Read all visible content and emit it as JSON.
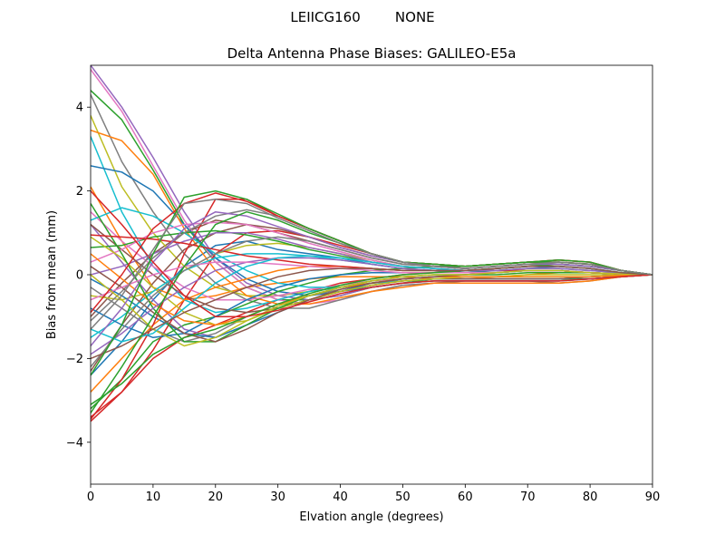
{
  "chart_data": {
    "type": "line",
    "suptitle": "LEIICG160        NONE",
    "title": "Delta Antenna Phase Biases: GALILEO-E5a",
    "xlabel": "Elvation angle (degrees)",
    "ylabel": "Bias from mean (mm)",
    "xlim": [
      0,
      90
    ],
    "ylim": [
      -5,
      5
    ],
    "xticks": [
      0,
      10,
      20,
      30,
      40,
      50,
      60,
      70,
      80,
      90
    ],
    "yticks": [
      -4,
      -2,
      0,
      2,
      4
    ],
    "grid": false,
    "legend": "none",
    "x": [
      0,
      5,
      10,
      15,
      20,
      25,
      30,
      35,
      40,
      45,
      50,
      55,
      60,
      65,
      70,
      75,
      80,
      85,
      90
    ],
    "series": [
      {
        "color": "#1f77b4",
        "values": [
          -2.4,
          -1.6,
          -0.6,
          0.2,
          0.7,
          0.8,
          0.6,
          0.5,
          0.4,
          0.25,
          0.15,
          0.1,
          0.05,
          0.1,
          0.15,
          0.2,
          0.15,
          0.05,
          0
        ]
      },
      {
        "color": "#ff7f0e",
        "values": [
          2.1,
          0.8,
          -0.3,
          -0.6,
          -0.5,
          -0.3,
          -0.2,
          -0.1,
          -0.05,
          -0.05,
          -0.05,
          -0.1,
          -0.1,
          -0.05,
          0,
          0.05,
          0.05,
          0.02,
          0
        ]
      },
      {
        "color": "#2ca02c",
        "values": [
          4.4,
          3.7,
          2.5,
          1.2,
          0.3,
          -0.3,
          -0.6,
          -0.6,
          -0.5,
          -0.3,
          -0.2,
          -0.1,
          -0.1,
          -0.1,
          -0.1,
          -0.1,
          -0.1,
          -0.05,
          0
        ]
      },
      {
        "color": "#d62728",
        "values": [
          -3.4,
          -2.8,
          -2.0,
          -1.5,
          -1.2,
          -0.9,
          -0.6,
          -0.4,
          -0.2,
          -0.1,
          0,
          0.05,
          0.1,
          0.15,
          0.2,
          0.25,
          0.2,
          0.1,
          0
        ]
      },
      {
        "color": "#9467bd",
        "values": [
          5.0,
          4.0,
          2.8,
          1.5,
          0.4,
          -0.2,
          -0.5,
          -0.6,
          -0.5,
          -0.3,
          -0.2,
          -0.15,
          -0.15,
          -0.15,
          -0.15,
          -0.15,
          -0.1,
          -0.05,
          0
        ]
      },
      {
        "color": "#8c564b",
        "values": [
          -1.0,
          -0.2,
          0.5,
          1.0,
          1.3,
          1.2,
          1.0,
          0.8,
          0.6,
          0.4,
          0.25,
          0.2,
          0.15,
          0.2,
          0.25,
          0.3,
          0.25,
          0.1,
          0
        ]
      },
      {
        "color": "#e377c2",
        "values": [
          4.9,
          3.9,
          2.6,
          1.3,
          0.3,
          -0.3,
          -0.6,
          -0.7,
          -0.6,
          -0.4,
          -0.25,
          -0.2,
          -0.15,
          -0.15,
          -0.15,
          -0.15,
          -0.1,
          -0.05,
          0
        ]
      },
      {
        "color": "#7f7f7f",
        "values": [
          4.3,
          2.7,
          1.5,
          0.5,
          -0.2,
          -0.6,
          -0.8,
          -0.8,
          -0.6,
          -0.4,
          -0.25,
          -0.2,
          -0.15,
          -0.15,
          -0.15,
          -0.2,
          -0.15,
          -0.05,
          0
        ]
      },
      {
        "color": "#bcbd22",
        "values": [
          3.8,
          2.1,
          1.0,
          0.2,
          -0.3,
          -0.5,
          -0.5,
          -0.4,
          -0.3,
          -0.2,
          -0.15,
          -0.1,
          -0.1,
          -0.1,
          -0.1,
          -0.1,
          -0.05,
          -0.02,
          0
        ]
      },
      {
        "color": "#17becf",
        "values": [
          3.3,
          1.5,
          0.2,
          -0.6,
          -0.9,
          -0.8,
          -0.6,
          -0.4,
          -0.3,
          -0.2,
          -0.1,
          -0.05,
          -0.05,
          -0.05,
          -0.05,
          -0.05,
          -0.05,
          -0.02,
          0
        ]
      },
      {
        "color": "#1f77b4",
        "values": [
          2.6,
          2.45,
          2.0,
          1.2,
          0.4,
          -0.1,
          -0.4,
          -0.5,
          -0.4,
          -0.3,
          -0.2,
          -0.15,
          -0.15,
          -0.15,
          -0.15,
          -0.15,
          -0.1,
          -0.05,
          0
        ]
      },
      {
        "color": "#ff7f0e",
        "values": [
          3.45,
          3.2,
          2.4,
          1.1,
          0.1,
          -0.5,
          -0.7,
          -0.7,
          -0.55,
          -0.4,
          -0.3,
          -0.2,
          -0.2,
          -0.2,
          -0.2,
          -0.2,
          -0.15,
          -0.05,
          0
        ]
      },
      {
        "color": "#2ca02c",
        "values": [
          -3.2,
          -2.5,
          -1.6,
          -1.2,
          -1.0,
          -0.7,
          -0.4,
          -0.2,
          0,
          0.1,
          0.15,
          0.2,
          0.2,
          0.25,
          0.3,
          0.3,
          0.25,
          0.1,
          0
        ]
      },
      {
        "color": "#d62728",
        "values": [
          -3.5,
          -2.8,
          -1.8,
          -0.6,
          0.5,
          1.0,
          1.05,
          0.9,
          0.7,
          0.5,
          0.3,
          0.25,
          0.2,
          0.25,
          0.3,
          0.3,
          0.25,
          0.1,
          0
        ]
      },
      {
        "color": "#9467bd",
        "values": [
          1.2,
          0.3,
          -0.6,
          -1.3,
          -1.5,
          -1.2,
          -0.8,
          -0.6,
          -0.4,
          -0.25,
          -0.15,
          -0.1,
          -0.1,
          -0.1,
          -0.1,
          -0.1,
          -0.05,
          -0.02,
          0
        ]
      },
      {
        "color": "#8c564b",
        "values": [
          -2.3,
          -1.2,
          -0.2,
          0.6,
          1.0,
          1.2,
          1.1,
          0.9,
          0.65,
          0.45,
          0.3,
          0.2,
          0.15,
          0.2,
          0.25,
          0.25,
          0.2,
          0.1,
          0
        ]
      },
      {
        "color": "#e377c2",
        "values": [
          1.5,
          0.8,
          0.2,
          -0.3,
          -0.6,
          -0.6,
          -0.5,
          -0.35,
          -0.25,
          -0.15,
          -0.1,
          -0.05,
          -0.05,
          -0.05,
          -0.05,
          -0.05,
          -0.05,
          -0.02,
          0
        ]
      },
      {
        "color": "#7f7f7f",
        "values": [
          -0.3,
          -0.8,
          -1.3,
          -1.6,
          -1.4,
          -1.0,
          -0.7,
          -0.5,
          -0.35,
          -0.2,
          -0.1,
          -0.05,
          -0.05,
          -0.05,
          -0.05,
          -0.05,
          -0.05,
          -0.02,
          0
        ]
      },
      {
        "color": "#bcbd22",
        "values": [
          -0.5,
          -0.6,
          -0.4,
          0.1,
          0.5,
          0.7,
          0.75,
          0.65,
          0.5,
          0.35,
          0.2,
          0.15,
          0.1,
          0.15,
          0.2,
          0.2,
          0.15,
          0.05,
          0
        ]
      },
      {
        "color": "#17becf",
        "values": [
          1.3,
          1.6,
          1.4,
          1.0,
          0.5,
          0.1,
          -0.2,
          -0.3,
          -0.3,
          -0.2,
          -0.15,
          -0.1,
          -0.1,
          -0.1,
          -0.1,
          -0.1,
          -0.05,
          -0.02,
          0
        ]
      },
      {
        "color": "#1f77b4",
        "values": [
          -0.1,
          -0.5,
          -1.0,
          -1.4,
          -1.5,
          -1.2,
          -0.9,
          -0.6,
          -0.4,
          -0.2,
          -0.1,
          -0.05,
          0,
          0.05,
          0.1,
          0.1,
          0.05,
          0.02,
          0
        ]
      },
      {
        "color": "#ff7f0e",
        "values": [
          -2.8,
          -2.0,
          -1.2,
          -0.6,
          -0.3,
          -0.1,
          0.1,
          0.2,
          0.2,
          0.15,
          0.1,
          0.1,
          0.1,
          0.1,
          0.15,
          0.15,
          0.1,
          0.05,
          0
        ]
      },
      {
        "color": "#2ca02c",
        "values": [
          0.65,
          0.7,
          0.9,
          1.0,
          1.05,
          0.95,
          0.8,
          0.6,
          0.45,
          0.3,
          0.2,
          0.15,
          0.1,
          0.15,
          0.2,
          0.2,
          0.15,
          0.05,
          0
        ]
      },
      {
        "color": "#d62728",
        "values": [
          -3.45,
          -2.5,
          -1.2,
          0.5,
          1.8,
          1.8,
          1.4,
          1.1,
          0.8,
          0.5,
          0.3,
          0.25,
          0.2,
          0.25,
          0.3,
          0.35,
          0.3,
          0.1,
          0
        ]
      },
      {
        "color": "#9467bd",
        "values": [
          0.0,
          0.2,
          0.5,
          0.8,
          1.0,
          1.0,
          0.85,
          0.65,
          0.5,
          0.3,
          0.2,
          0.15,
          0.1,
          0.15,
          0.2,
          0.2,
          0.15,
          0.05,
          0
        ]
      },
      {
        "color": "#8c564b",
        "values": [
          1.2,
          0.6,
          0.0,
          -0.5,
          -0.8,
          -0.9,
          -0.8,
          -0.6,
          -0.4,
          -0.25,
          -0.15,
          -0.1,
          -0.1,
          -0.1,
          -0.1,
          -0.1,
          -0.05,
          -0.02,
          0
        ]
      },
      {
        "color": "#e377c2",
        "values": [
          0.3,
          0.6,
          1.0,
          1.2,
          1.25,
          1.2,
          1.0,
          0.75,
          0.55,
          0.35,
          0.2,
          0.15,
          0.1,
          0.15,
          0.2,
          0.2,
          0.15,
          0.05,
          0
        ]
      },
      {
        "color": "#7f7f7f",
        "values": [
          -1.1,
          -0.4,
          0.4,
          1.0,
          1.4,
          1.55,
          1.4,
          1.1,
          0.8,
          0.5,
          0.3,
          0.2,
          0.15,
          0.2,
          0.25,
          0.25,
          0.2,
          0.1,
          0
        ]
      },
      {
        "color": "#bcbd22",
        "values": [
          0.9,
          0.4,
          -0.3,
          -0.9,
          -1.2,
          -1.1,
          -0.8,
          -0.6,
          -0.4,
          -0.25,
          -0.15,
          -0.1,
          -0.05,
          -0.05,
          0,
          0,
          0,
          0,
          0
        ]
      },
      {
        "color": "#17becf",
        "values": [
          -1.5,
          -1.0,
          -0.4,
          0.1,
          0.4,
          0.5,
          0.5,
          0.45,
          0.35,
          0.25,
          0.15,
          0.1,
          0.1,
          0.1,
          0.15,
          0.15,
          0.1,
          0.05,
          0
        ]
      },
      {
        "color": "#1f77b4",
        "values": [
          -0.8,
          -1.2,
          -1.5,
          -1.4,
          -1.0,
          -0.6,
          -0.3,
          -0.1,
          0,
          0.05,
          0.05,
          0.05,
          0.05,
          0.05,
          0.1,
          0.1,
          0.05,
          0.02,
          0
        ]
      },
      {
        "color": "#ff7f0e",
        "values": [
          0.5,
          -0.1,
          -0.7,
          -1.1,
          -1.2,
          -1.0,
          -0.7,
          -0.5,
          -0.3,
          -0.2,
          -0.1,
          -0.05,
          -0.05,
          -0.05,
          -0.05,
          -0.05,
          -0.05,
          -0.02,
          0
        ]
      },
      {
        "color": "#2ca02c",
        "values": [
          1.7,
          0.5,
          -0.8,
          -1.6,
          -1.6,
          -1.2,
          -0.8,
          -0.5,
          -0.3,
          -0.15,
          -0.05,
          0,
          0,
          0,
          0.05,
          0.05,
          0.05,
          0.02,
          0
        ]
      },
      {
        "color": "#d62728",
        "values": [
          0.95,
          0.9,
          0.85,
          0.75,
          0.6,
          0.45,
          0.35,
          0.25,
          0.2,
          0.15,
          0.1,
          0.1,
          0.1,
          0.1,
          0.1,
          0.1,
          0.05,
          0.02,
          0
        ]
      },
      {
        "color": "#9467bd",
        "values": [
          -1.9,
          -1.4,
          -0.8,
          -0.3,
          0.1,
          0.3,
          0.4,
          0.4,
          0.35,
          0.25,
          0.15,
          0.1,
          0.1,
          0.1,
          0.15,
          0.15,
          0.1,
          0.05,
          0
        ]
      },
      {
        "color": "#8c564b",
        "values": [
          0.2,
          -0.3,
          -0.9,
          -1.4,
          -1.6,
          -1.3,
          -0.9,
          -0.6,
          -0.35,
          -0.2,
          -0.1,
          -0.05,
          0,
          0.05,
          0.1,
          0.1,
          0.05,
          0.02,
          0
        ]
      },
      {
        "color": "#e377c2",
        "values": [
          -0.6,
          -0.3,
          0.0,
          0.2,
          0.3,
          0.3,
          0.25,
          0.2,
          0.15,
          0.1,
          0.05,
          0.05,
          0.05,
          0.05,
          0.1,
          0.1,
          0.05,
          0.02,
          0
        ]
      },
      {
        "color": "#7f7f7f",
        "values": [
          -2.2,
          -1.3,
          -0.5,
          0.1,
          0.5,
          0.8,
          0.9,
          0.8,
          0.6,
          0.4,
          0.25,
          0.2,
          0.15,
          0.2,
          0.25,
          0.25,
          0.2,
          0.1,
          0
        ]
      },
      {
        "color": "#bcbd22",
        "values": [
          0.0,
          -0.6,
          -1.3,
          -1.7,
          -1.5,
          -1.1,
          -0.75,
          -0.5,
          -0.3,
          -0.15,
          -0.05,
          0,
          0,
          0.05,
          0.1,
          0.1,
          0.05,
          0.02,
          0
        ]
      },
      {
        "color": "#17becf",
        "values": [
          -1.3,
          -1.6,
          -1.4,
          -0.8,
          -0.2,
          0.2,
          0.4,
          0.45,
          0.4,
          0.3,
          0.2,
          0.15,
          0.1,
          0.15,
          0.2,
          0.2,
          0.15,
          0.05,
          0
        ]
      },
      {
        "color": "#2ca02c",
        "values": [
          -3.1,
          -2.6,
          -1.9,
          -1.5,
          -1.3,
          -1.0,
          -0.7,
          -0.45,
          -0.25,
          -0.1,
          0,
          0.05,
          0.1,
          0.15,
          0.2,
          0.25,
          0.2,
          0.1,
          0
        ]
      },
      {
        "color": "#d62728",
        "values": [
          -0.9,
          0.0,
          1.1,
          1.7,
          1.95,
          1.75,
          1.4,
          1.1,
          0.8,
          0.5,
          0.3,
          0.25,
          0.2,
          0.25,
          0.3,
          0.35,
          0.3,
          0.1,
          0
        ]
      },
      {
        "color": "#9467bd",
        "values": [
          -1.7,
          -0.8,
          0.3,
          1.1,
          1.5,
          1.4,
          1.15,
          0.9,
          0.65,
          0.45,
          0.3,
          0.2,
          0.15,
          0.2,
          0.25,
          0.25,
          0.2,
          0.1,
          0
        ]
      },
      {
        "color": "#8c564b",
        "values": [
          -2.0,
          -1.7,
          -1.3,
          -0.9,
          -0.6,
          -0.3,
          -0.05,
          0.1,
          0.15,
          0.15,
          0.1,
          0.1,
          0.1,
          0.15,
          0.2,
          0.2,
          0.15,
          0.05,
          0
        ]
      },
      {
        "color": "#2ca02c",
        "values": [
          -3.3,
          -2.2,
          -1.0,
          0.2,
          1.2,
          1.5,
          1.3,
          1.0,
          0.75,
          0.5,
          0.3,
          0.25,
          0.2,
          0.25,
          0.3,
          0.3,
          0.25,
          0.1,
          0
        ]
      },
      {
        "color": "#d62728",
        "values": [
          2.0,
          1.2,
          0.3,
          -0.5,
          -1.0,
          -1.0,
          -0.85,
          -0.65,
          -0.45,
          -0.3,
          -0.2,
          -0.15,
          -0.15,
          -0.15,
          -0.15,
          -0.15,
          -0.1,
          -0.05,
          0
        ]
      },
      {
        "color": "#2ca02c",
        "values": [
          -2.4,
          -1.2,
          0.5,
          1.85,
          2.0,
          1.8,
          1.45,
          1.1,
          0.8,
          0.5,
          0.3,
          0.25,
          0.2,
          0.25,
          0.3,
          0.35,
          0.3,
          0.1,
          0
        ]
      },
      {
        "color": "#7f7f7f",
        "values": [
          -1.3,
          -0.5,
          0.6,
          1.7,
          1.8,
          1.7,
          1.35,
          1.05,
          0.75,
          0.5,
          0.3,
          0.2,
          0.15,
          0.2,
          0.25,
          0.3,
          0.25,
          0.1,
          0
        ]
      }
    ]
  }
}
